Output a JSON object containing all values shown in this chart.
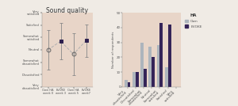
{
  "title": "Sound quality",
  "fig_bg_color": "#e8d5c8",
  "panel_bg_color": "#e8d5c8",
  "outer_bg_color": "#f0ebe5",
  "left": {
    "ytick_labels": [
      "Very\ndissatisfied",
      "Dissatisfied",
      "Somewhat\ndissatisfied",
      "Neutral",
      "Somewhat\nsatisfied",
      "Satisfied",
      "Very\nsatisfied"
    ],
    "xtick_labels": [
      "Own HA\nweek 0",
      "EVOKE\nweek 3",
      "Own HA\nweek 5",
      "EVOKE\nweek7"
    ],
    "means": [
      4.0,
      4.7,
      3.65,
      4.75
    ],
    "errors": [
      1.6,
      1.5,
      1.7,
      1.3
    ],
    "marker_styles": [
      "o",
      "s",
      "o",
      "s"
    ],
    "marker_fills": [
      "none",
      "#2d1f4e",
      "none",
      "#2d1f4e"
    ],
    "line_color": "#b0b0b0",
    "line_style": "--",
    "marker_edge_color": "#666666",
    "error_color": "#888888"
  },
  "right": {
    "categories": [
      "Very\ndissatisfied",
      "Dissatisfied",
      "Somewhat\ndissatisfied",
      "Neutral",
      "Somewhat\nsatisfied",
      "Satisfied",
      "Very\nsatisfied"
    ],
    "own_values": [
      5,
      10,
      30,
      27,
      28,
      13,
      0
    ],
    "evoke_values": [
      3,
      10,
      12,
      20,
      43,
      42,
      0
    ],
    "own_color": "#adb5bd",
    "evoke_color": "#352458",
    "ylabel": "Number of respondents",
    "ylim": [
      0,
      50
    ],
    "yticks": [
      0,
      10,
      20,
      30,
      40,
      50
    ],
    "legend_title": "HA",
    "legend_own": "Own",
    "legend_evoke": "EVOKE"
  }
}
